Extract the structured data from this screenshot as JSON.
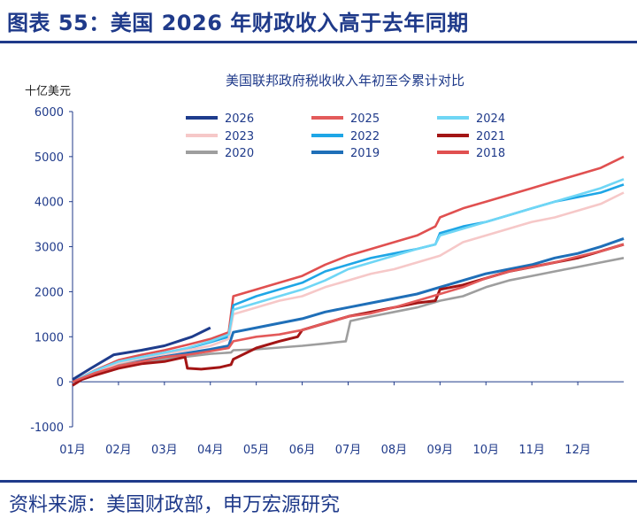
{
  "figure_title": "图表 55：美国 2026 年财政收入高于去年同期",
  "source": "资料来源：美国财政部，申万宏源研究",
  "colors": {
    "title": "#1f3a8a",
    "s2026": "#1e3c8c",
    "s2025": "#e35a5a",
    "s2024": "#6fd6f5",
    "s2023": "#f6c8c8",
    "s2022": "#1ea6e6",
    "s2021": "#a31515",
    "s2020": "#9e9e9e",
    "s2019": "#1f6fb8",
    "s2018": "#e05050"
  },
  "chart_data": {
    "type": "line",
    "title": "美国联邦政府税收收入年初至今累计对比",
    "ylabel": "十亿美元",
    "xlabel": "",
    "ylim": [
      -1000,
      6000
    ],
    "yticks": [
      6000,
      5000,
      4000,
      3000,
      2000,
      1000,
      0,
      -1000
    ],
    "categories": [
      "01月",
      "02月",
      "03月",
      "04月",
      "05月",
      "06月",
      "07月",
      "08月",
      "09月",
      "10月",
      "11月",
      "12月"
    ],
    "x_positions": [
      1,
      2,
      3,
      4,
      5,
      6,
      7,
      8,
      9,
      10,
      11,
      12
    ],
    "x_range": [
      1,
      13
    ],
    "legend_position": "top",
    "grid": false,
    "series": [
      {
        "name": "2026",
        "x": [
          1,
          1.4,
          1.9,
          2.5,
          3.0,
          3.3,
          3.6,
          4.0
        ],
        "y": [
          50,
          300,
          600,
          700,
          800,
          900,
          1000,
          1200
        ]
      },
      {
        "name": "2025",
        "x": [
          1,
          1.5,
          2.0,
          2.5,
          3.0,
          3.5,
          4.0,
          4.4,
          4.5,
          5.0,
          5.5,
          6.0,
          6.5,
          7.0,
          7.5,
          8.0,
          8.5,
          9.0,
          9.5,
          10.0,
          10.5,
          11.0,
          11.5,
          12.0,
          12.5,
          13.0
        ],
        "y": [
          0,
          200,
          350,
          450,
          550,
          600,
          680,
          750,
          900,
          1000,
          1050,
          1150,
          1300,
          1450,
          1520,
          1650,
          1800,
          1950,
          2100,
          2300,
          2450,
          2550,
          2650,
          2780,
          2900,
          3050
        ]
      },
      {
        "name": "2024",
        "x": [
          1,
          1.5,
          2.0,
          2.5,
          3.0,
          3.5,
          4.0,
          4.4,
          4.5,
          5.0,
          5.5,
          6.0,
          6.5,
          7.0,
          7.5,
          8.0,
          8.5,
          8.9,
          9.0,
          9.5,
          10.0,
          10.5,
          11.0,
          11.5,
          12.0,
          12.5,
          13.0
        ],
        "y": [
          0,
          250,
          450,
          550,
          650,
          750,
          900,
          1050,
          1600,
          1750,
          1900,
          2050,
          2250,
          2500,
          2650,
          2800,
          2950,
          3050,
          3250,
          3400,
          3550,
          3700,
          3850,
          4000,
          4150,
          4300,
          4500
        ]
      },
      {
        "name": "2023",
        "x": [
          1,
          1.5,
          2.0,
          2.5,
          3.0,
          3.5,
          4.0,
          4.4,
          4.5,
          5.0,
          5.5,
          6.0,
          6.5,
          7.0,
          7.5,
          8.0,
          8.5,
          9.0,
          9.5,
          10.0,
          10.5,
          11.0,
          11.5,
          12.0,
          12.5,
          13.0
        ],
        "y": [
          0,
          220,
          420,
          520,
          620,
          700,
          800,
          950,
          1500,
          1650,
          1800,
          1900,
          2100,
          2250,
          2400,
          2500,
          2650,
          2800,
          3100,
          3250,
          3400,
          3550,
          3650,
          3800,
          3950,
          4200
        ]
      },
      {
        "name": "2022",
        "x": [
          1,
          1.5,
          2.0,
          2.5,
          3.0,
          3.5,
          4.0,
          4.4,
          4.5,
          5.0,
          5.5,
          6.0,
          6.5,
          7.0,
          7.5,
          8.0,
          8.5,
          8.9,
          9.0,
          9.5,
          10.0,
          10.5,
          11.0,
          11.5,
          12.0,
          12.5,
          13.0
        ],
        "y": [
          0,
          230,
          430,
          530,
          640,
          740,
          880,
          1000,
          1700,
          1900,
          2050,
          2200,
          2450,
          2600,
          2750,
          2850,
          2950,
          3050,
          3300,
          3450,
          3550,
          3700,
          3850,
          4000,
          4100,
          4200,
          4380
        ]
      },
      {
        "name": "2021",
        "x": [
          1,
          1.2,
          1.5,
          2.0,
          2.5,
          3.0,
          3.45,
          3.5,
          3.8,
          4.2,
          4.45,
          4.5,
          5.0,
          5.5,
          5.9,
          6.0,
          6.5,
          7.0,
          7.5,
          8.0,
          8.5,
          8.9,
          9.0,
          9.5,
          10.0,
          10.5,
          11.0,
          11.5,
          12.0,
          12.5,
          13.0
        ],
        "y": [
          -80,
          50,
          150,
          300,
          400,
          450,
          550,
          300,
          280,
          320,
          380,
          500,
          750,
          900,
          1000,
          1150,
          1300,
          1450,
          1550,
          1650,
          1750,
          1800,
          2050,
          2150,
          2300,
          2450,
          2550,
          2650,
          2750,
          2900,
          3050
        ]
      },
      {
        "name": "2020",
        "x": [
          1,
          1.5,
          2.0,
          2.5,
          3.0,
          3.5,
          4.0,
          4.45,
          4.5,
          5.0,
          5.5,
          6.0,
          6.5,
          6.95,
          7.05,
          7.5,
          8.0,
          8.5,
          9.0,
          9.5,
          10.0,
          10.5,
          11.0,
          11.5,
          12.0,
          12.5,
          13.0
        ],
        "y": [
          0,
          200,
          380,
          450,
          500,
          560,
          620,
          650,
          700,
          720,
          760,
          800,
          850,
          900,
          1350,
          1450,
          1550,
          1650,
          1800,
          1900,
          2100,
          2250,
          2350,
          2450,
          2550,
          2650,
          2750
        ]
      },
      {
        "name": "2019",
        "x": [
          1,
          1.5,
          2.0,
          2.5,
          3.0,
          3.5,
          4.0,
          4.4,
          4.5,
          5.0,
          5.5,
          6.0,
          6.5,
          7.0,
          7.5,
          8.0,
          8.5,
          9.0,
          9.5,
          10.0,
          10.5,
          11.0,
          11.5,
          12.0,
          12.5,
          13.0
        ],
        "y": [
          0,
          200,
          380,
          480,
          560,
          640,
          720,
          800,
          1100,
          1200,
          1300,
          1400,
          1550,
          1650,
          1750,
          1850,
          1950,
          2100,
          2250,
          2400,
          2500,
          2600,
          2750,
          2850,
          3000,
          3180
        ]
      },
      {
        "name": "2018",
        "x": [
          1,
          1.5,
          2.0,
          2.5,
          3.0,
          3.5,
          4.0,
          4.4,
          4.5,
          5.0,
          5.5,
          6.0,
          6.5,
          7.0,
          7.5,
          8.0,
          8.5,
          8.9,
          9.0,
          9.5,
          10.0,
          10.5,
          11.0,
          11.5,
          12.0,
          12.5,
          13.0
        ],
        "y": [
          0,
          260,
          480,
          600,
          700,
          820,
          950,
          1100,
          1900,
          2050,
          2200,
          2350,
          2600,
          2800,
          2950,
          3100,
          3250,
          3450,
          3650,
          3850,
          4000,
          4150,
          4300,
          4450,
          4600,
          4750,
          5000
        ]
      }
    ]
  }
}
